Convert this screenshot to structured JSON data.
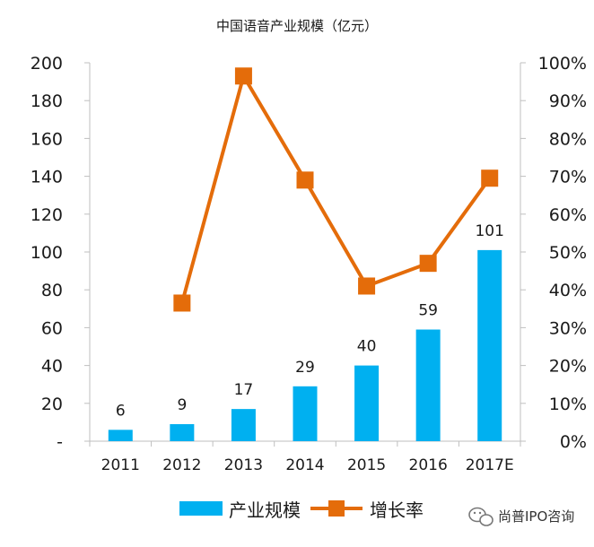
{
  "chart_data": {
    "type": "bar",
    "title": "中国语音产业规模（亿元）",
    "categories": [
      "2011",
      "2012",
      "2013",
      "2014",
      "2015",
      "2016",
      "2017E"
    ],
    "series": [
      {
        "name": "产业规模",
        "type": "bar",
        "axis": "left",
        "color": "#00b0f0",
        "values": [
          6,
          9,
          17,
          29,
          40,
          59,
          101
        ],
        "data_labels": [
          "6",
          "9",
          "17",
          "29",
          "40",
          "59",
          "101"
        ]
      },
      {
        "name": "增长率",
        "type": "line",
        "axis": "right",
        "color": "#e46c0a",
        "values": [
          null,
          36.5,
          96.5,
          69,
          41,
          47,
          69.5
        ]
      }
    ],
    "y_left": {
      "ylim": [
        0,
        200
      ],
      "ticks": [
        0,
        20,
        40,
        60,
        80,
        100,
        120,
        140,
        160,
        180,
        200
      ],
      "tick_labels": [
        "-",
        "20",
        "40",
        "60",
        "80",
        "100",
        "120",
        "140",
        "160",
        "180",
        "200"
      ]
    },
    "y_right": {
      "ylim": [
        0,
        100
      ],
      "ticks": [
        0,
        10,
        20,
        30,
        40,
        50,
        60,
        70,
        80,
        90,
        100
      ],
      "tick_labels": [
        "0%",
        "10%",
        "20%",
        "30%",
        "40%",
        "50%",
        "60%",
        "70%",
        "80%",
        "90%",
        "100%"
      ]
    },
    "grid": false,
    "legend": "bottom"
  },
  "watermark": {
    "text": "尚普IPO咨询",
    "icon": "wechat-icon"
  }
}
